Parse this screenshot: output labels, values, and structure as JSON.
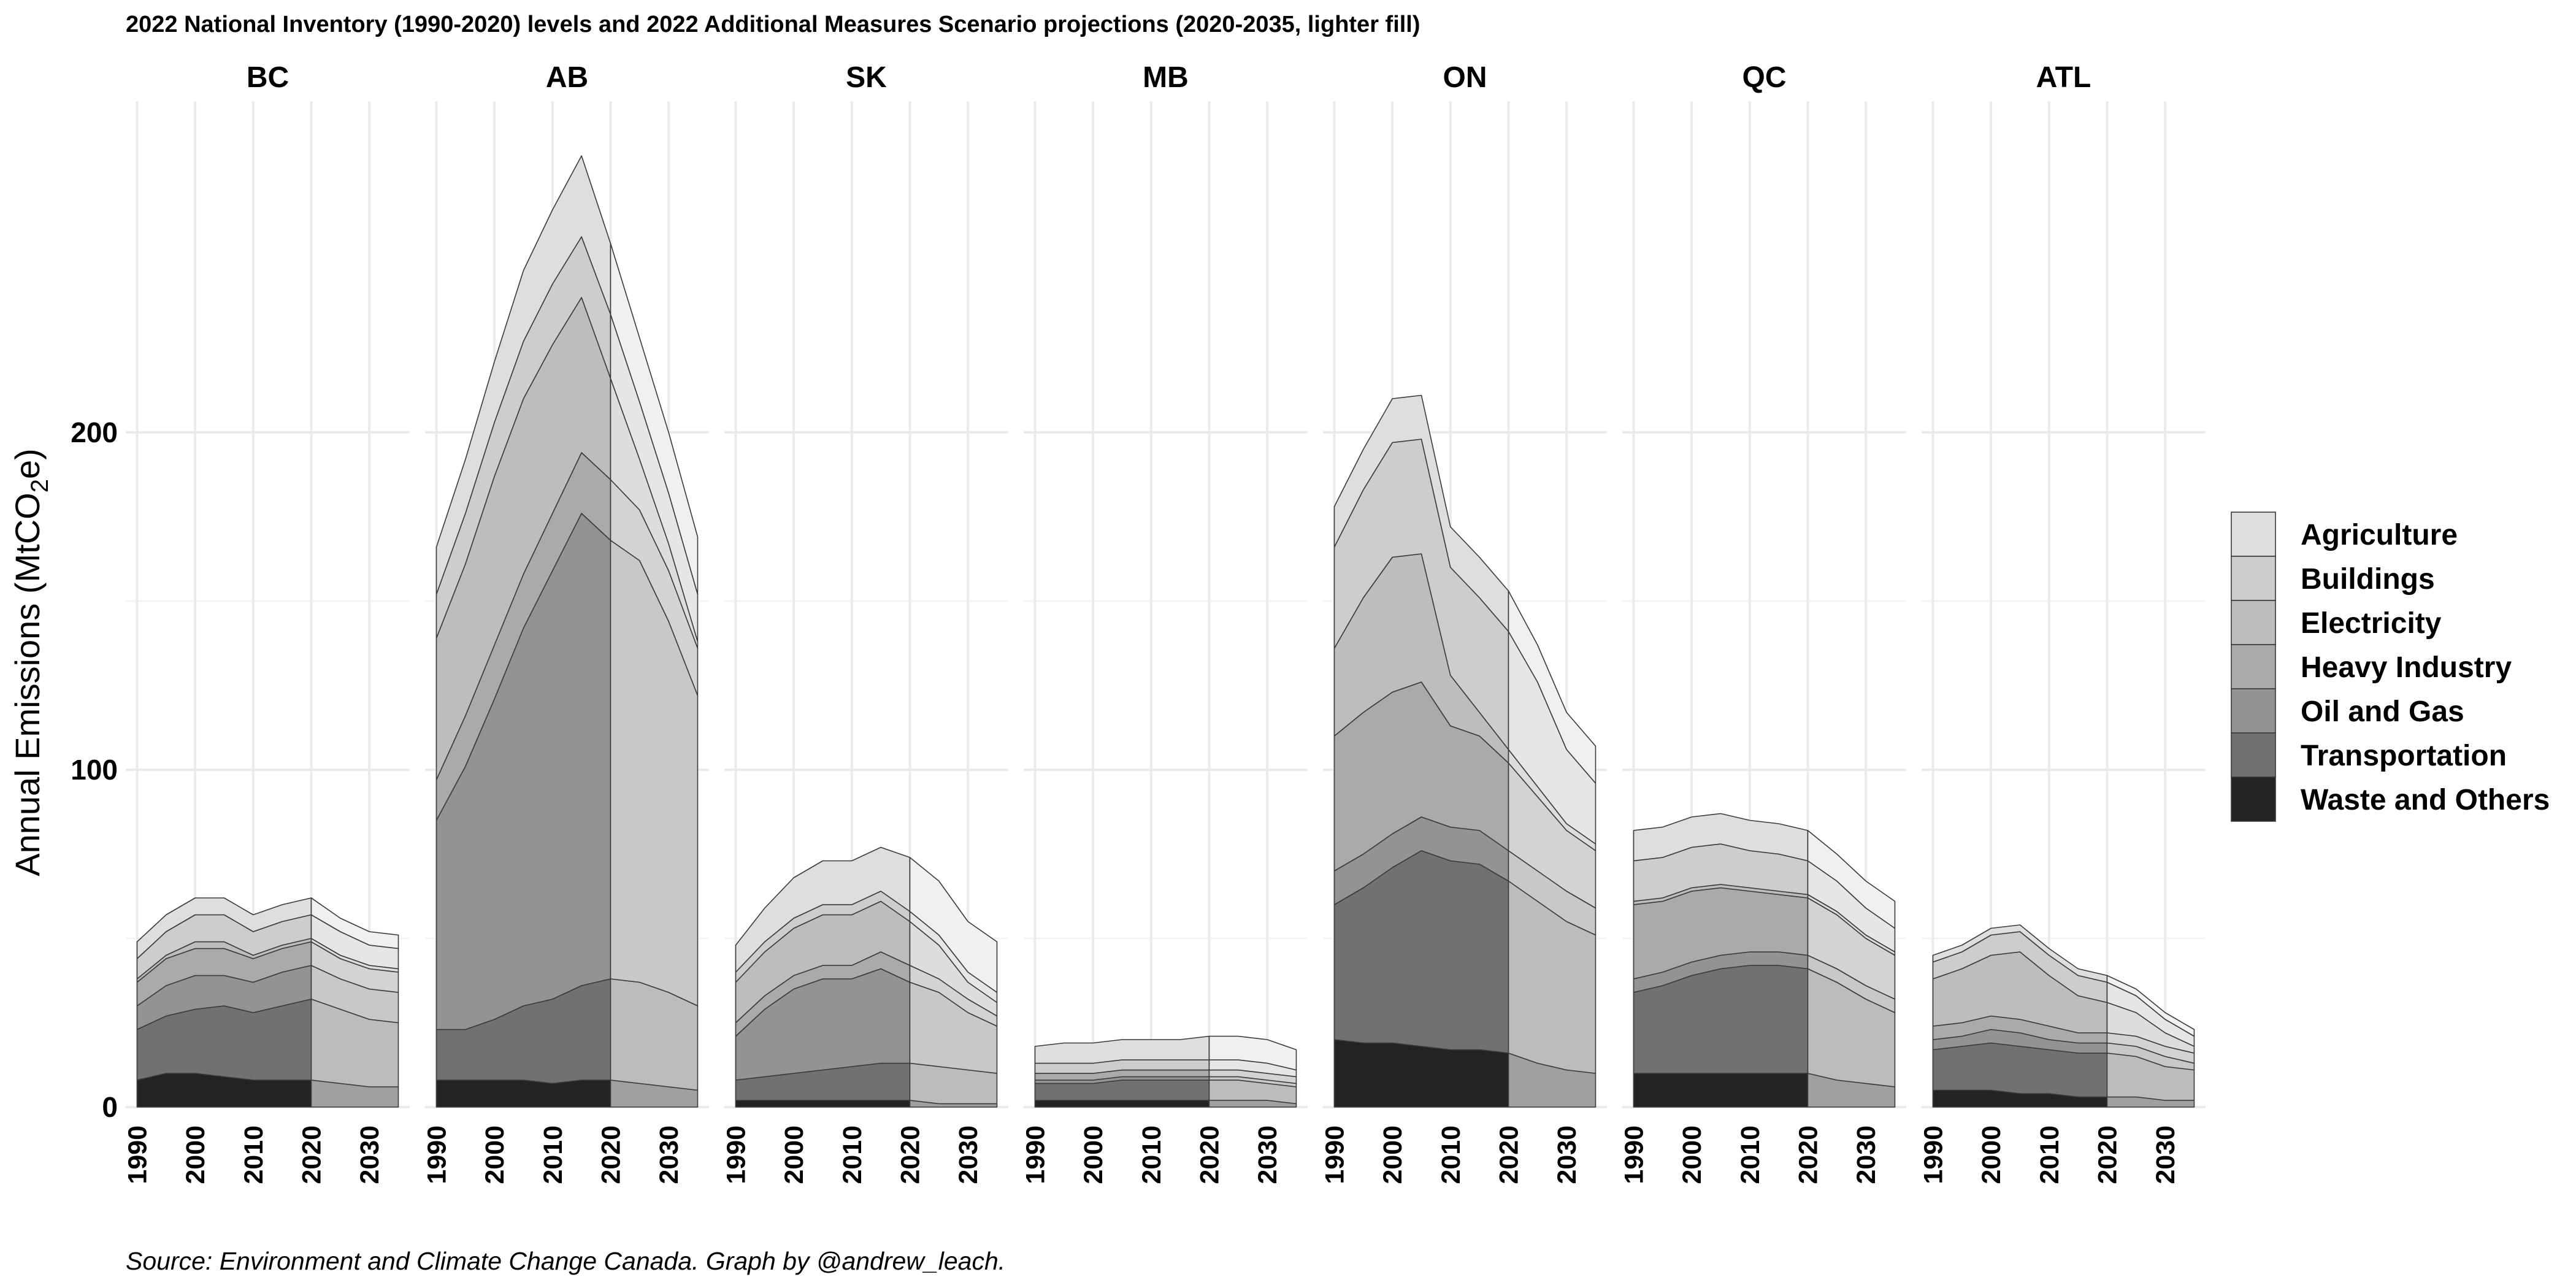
{
  "chart_data": {
    "type": "area",
    "title": "2022 National Inventory (1990-2020) levels and 2022 Additional Measures Scenario projections (2020-2035, lighter fill)",
    "caption": "Source: Environment and Climate Change Canada. Graph by @andrew_leach.",
    "ylabel": "Annual Emissions  (MtCO2e)",
    "ylabel_main": "Annual Emissions  (MtCO",
    "ylabel_sub": "2",
    "ylabel_end": "e)",
    "ylim": [
      0,
      290
    ],
    "yticks": [
      0,
      100,
      200
    ],
    "xlim": [
      1990,
      2035
    ],
    "xticks": [
      1990,
      2000,
      2010,
      2020,
      2030
    ],
    "x": [
      1990,
      1995,
      2000,
      2005,
      2010,
      2015,
      2020,
      2025,
      2030,
      2035
    ],
    "historical_range": [
      1990,
      2020
    ],
    "projection_range": [
      2020,
      2035
    ],
    "stack_order": [
      "Waste and Others",
      "Transportation",
      "Oil and Gas",
      "Heavy Industry",
      "Electricity",
      "Buildings",
      "Agriculture"
    ],
    "legend": [
      "Agriculture",
      "Buildings",
      "Electricity",
      "Heavy Industry",
      "Oil and Gas",
      "Transportation",
      "Waste and Others"
    ],
    "legend_position": "right",
    "colors": {
      "Agriculture": "#dedede",
      "Buildings": "#cdcdcd",
      "Electricity": "#bdbdbd",
      "Heavy Industry": "#aaaaaa",
      "Oil and Gas": "#939393",
      "Transportation": "#717171",
      "Waste and Others": "#232323"
    },
    "projection_colors": {
      "Agriculture": "#f0f0f0",
      "Buildings": "#e6e6e6",
      "Electricity": "#dddddd",
      "Heavy Industry": "#d3d3d3",
      "Oil and Gas": "#c8c8c8",
      "Transportation": "#bcbcbc",
      "Waste and Others": "#a0a0a0"
    },
    "panels": [
      {
        "name": "BC",
        "series": {
          "Waste and Others": [
            8,
            10,
            10,
            9,
            8,
            8,
            8,
            7,
            6,
            6
          ],
          "Transportation": [
            15,
            17,
            19,
            21,
            20,
            22,
            24,
            22,
            20,
            19
          ],
          "Oil and Gas": [
            7,
            9,
            10,
            9,
            9,
            10,
            10,
            9,
            9,
            9
          ],
          "Heavy Industry": [
            7,
            8,
            8,
            8,
            7,
            7,
            7,
            6,
            6,
            6
          ],
          "Electricity": [
            1,
            1,
            2,
            2,
            1,
            1,
            1,
            1,
            1,
            1
          ],
          "Buildings": [
            6,
            7,
            8,
            8,
            7,
            7,
            7,
            7,
            6,
            6
          ],
          "Agriculture": [
            5,
            5,
            5,
            5,
            5,
            5,
            5,
            4,
            4,
            4
          ]
        }
      },
      {
        "name": "AB",
        "series": {
          "Waste and Others": [
            8,
            8,
            8,
            8,
            7,
            8,
            8,
            7,
            6,
            5
          ],
          "Transportation": [
            15,
            15,
            18,
            22,
            25,
            28,
            30,
            30,
            28,
            25
          ],
          "Oil and Gas": [
            62,
            78,
            95,
            112,
            127,
            140,
            130,
            125,
            110,
            92
          ],
          "Heavy Industry": [
            12,
            15,
            16,
            16,
            17,
            18,
            18,
            15,
            15,
            14
          ],
          "Electricity": [
            42,
            45,
            50,
            52,
            50,
            46,
            30,
            15,
            8,
            2
          ],
          "Buildings": [
            13,
            15,
            16,
            17,
            18,
            18,
            19,
            17,
            15,
            14
          ],
          "Agriculture": [
            14,
            16,
            18,
            21,
            22,
            24,
            21,
            19,
            18,
            17
          ]
        }
      },
      {
        "name": "SK",
        "series": {
          "Waste and Others": [
            2,
            2,
            2,
            2,
            2,
            2,
            2,
            1,
            1,
            1
          ],
          "Transportation": [
            6,
            7,
            8,
            9,
            10,
            11,
            11,
            11,
            10,
            9
          ],
          "Oil and Gas": [
            13,
            20,
            25,
            27,
            26,
            28,
            24,
            22,
            17,
            14
          ],
          "Heavy Industry": [
            4,
            4,
            4,
            4,
            4,
            5,
            5,
            4,
            4,
            3
          ],
          "Electricity": [
            12,
            13,
            14,
            15,
            15,
            15,
            13,
            10,
            5,
            4
          ],
          "Buildings": [
            3,
            3,
            3,
            3,
            3,
            3,
            3,
            3,
            3,
            3
          ],
          "Agriculture": [
            8,
            10,
            12,
            13,
            13,
            13,
            16,
            16,
            15,
            15
          ]
        }
      },
      {
        "name": "MB",
        "series": {
          "Waste and Others": [
            2,
            2,
            2,
            2,
            2,
            2,
            2,
            2,
            2,
            1
          ],
          "Transportation": [
            5,
            5,
            5,
            6,
            6,
            6,
            6,
            6,
            5,
            5
          ],
          "Oil and Gas": [
            1,
            1,
            1,
            1,
            1,
            1,
            1,
            1,
            1,
            1
          ],
          "Heavy Industry": [
            2,
            2,
            2,
            2,
            2,
            2,
            2,
            2,
            2,
            2
          ],
          "Electricity": [
            0,
            0,
            0,
            0,
            0,
            0,
            0,
            0,
            0,
            0
          ],
          "Buildings": [
            3,
            3,
            3,
            3,
            3,
            3,
            3,
            3,
            3,
            2
          ],
          "Agriculture": [
            5,
            6,
            6,
            6,
            6,
            6,
            7,
            7,
            7,
            6
          ]
        }
      },
      {
        "name": "ON",
        "series": {
          "Waste and Others": [
            20,
            19,
            19,
            18,
            17,
            17,
            16,
            13,
            11,
            10
          ],
          "Transportation": [
            40,
            46,
            52,
            58,
            56,
            55,
            51,
            48,
            44,
            41
          ],
          "Oil and Gas": [
            10,
            10,
            10,
            10,
            10,
            10,
            9,
            9,
            9,
            8
          ],
          "Heavy Industry": [
            40,
            42,
            42,
            40,
            30,
            28,
            26,
            22,
            18,
            17
          ],
          "Electricity": [
            26,
            34,
            40,
            38,
            15,
            7,
            4,
            3,
            2,
            2
          ],
          "Buildings": [
            30,
            32,
            34,
            34,
            32,
            34,
            35,
            31,
            22,
            18
          ],
          "Agriculture": [
            12,
            12,
            13,
            13,
            12,
            12,
            12,
            11,
            11,
            11
          ]
        }
      },
      {
        "name": "QC",
        "series": {
          "Waste and Others": [
            10,
            10,
            10,
            10,
            10,
            10,
            10,
            8,
            7,
            6
          ],
          "Transportation": [
            24,
            26,
            29,
            31,
            32,
            32,
            31,
            29,
            25,
            22
          ],
          "Oil and Gas": [
            4,
            4,
            4,
            4,
            4,
            4,
            4,
            4,
            4,
            4
          ],
          "Heavy Industry": [
            22,
            21,
            21,
            20,
            18,
            17,
            17,
            16,
            14,
            13
          ],
          "Electricity": [
            1,
            1,
            1,
            1,
            1,
            1,
            1,
            1,
            1,
            1
          ],
          "Buildings": [
            12,
            12,
            12,
            12,
            11,
            11,
            10,
            9,
            8,
            7
          ],
          "Agriculture": [
            9,
            9,
            9,
            9,
            9,
            9,
            9,
            8,
            8,
            8
          ]
        }
      },
      {
        "name": "ATL",
        "series": {
          "Waste and Others": [
            5,
            5,
            5,
            4,
            4,
            3,
            3,
            3,
            2,
            2
          ],
          "Transportation": [
            12,
            13,
            14,
            14,
            13,
            13,
            13,
            12,
            10,
            9
          ],
          "Oil and Gas": [
            3,
            3,
            4,
            4,
            3,
            3,
            3,
            3,
            3,
            2
          ],
          "Heavy Industry": [
            4,
            4,
            4,
            4,
            4,
            3,
            3,
            3,
            3,
            3
          ],
          "Electricity": [
            14,
            16,
            18,
            20,
            15,
            11,
            9,
            7,
            4,
            2
          ],
          "Buildings": [
            5,
            5,
            6,
            6,
            6,
            6,
            6,
            5,
            4,
            3
          ],
          "Agriculture": [
            2,
            2,
            2,
            2,
            2,
            2,
            2,
            2,
            2,
            2
          ]
        }
      }
    ]
  }
}
